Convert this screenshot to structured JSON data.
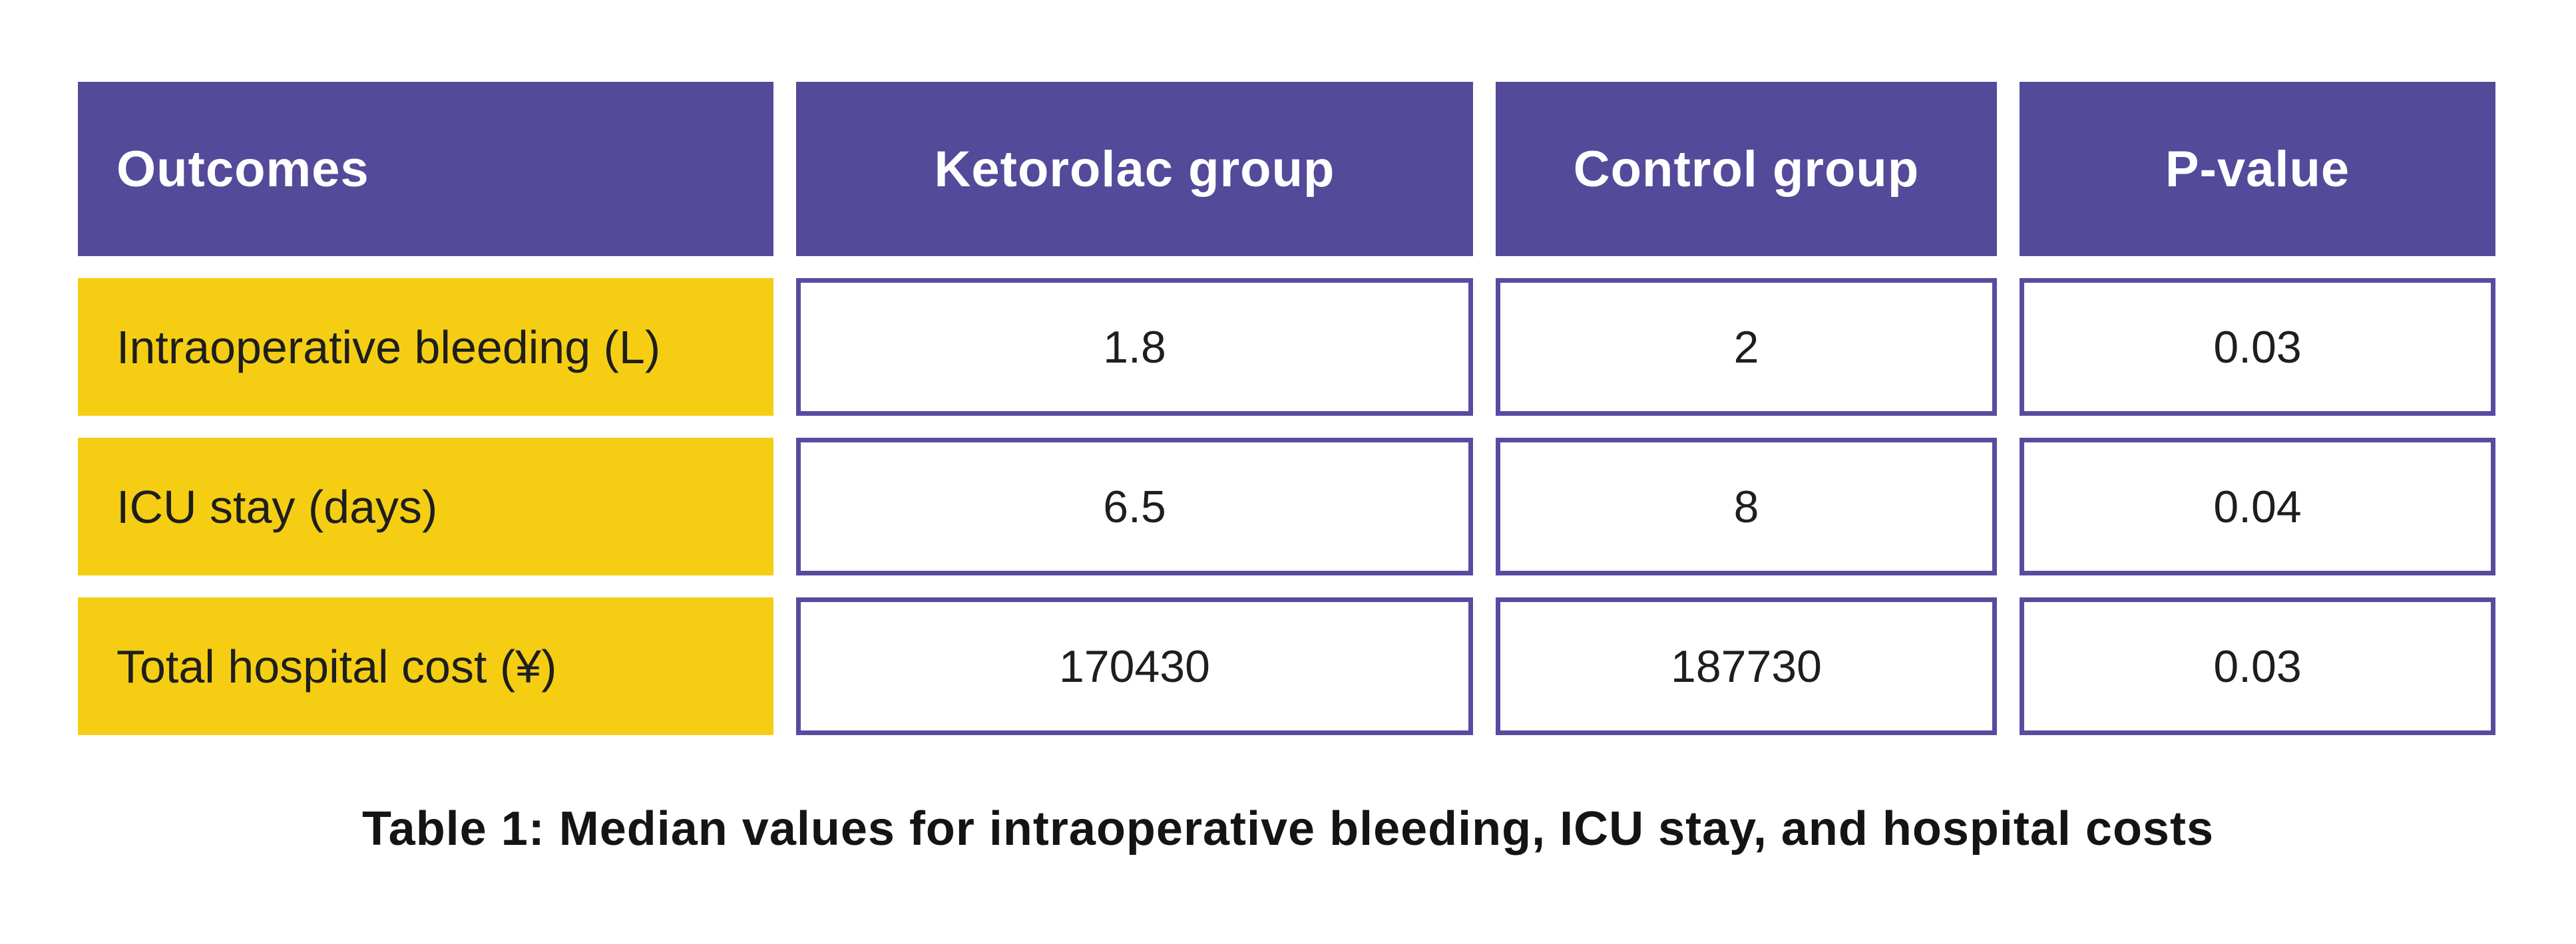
{
  "table": {
    "columns": [
      "Outcomes",
      "Ketorolac group",
      "Control group",
      "P-value"
    ],
    "rows": [
      {
        "outcome": "Intraoperative bleeding (L)",
        "ketorolac": "1.8",
        "control": "2",
        "p_value": "0.03"
      },
      {
        "outcome": "ICU stay (days)",
        "ketorolac": "6.5",
        "control": "8",
        "p_value": "0.04"
      },
      {
        "outcome": "Total hospital cost (¥)",
        "ketorolac": "170430",
        "control": "187730",
        "p_value": "0.03"
      }
    ]
  },
  "caption": {
    "text": "Table 1: Median values for intraoperative bleeding, ICU stay, and hospital costs"
  },
  "colors": {
    "header_bg": "#544A9A",
    "header_text": "#FFFFFF",
    "row_label_bg": "#F5CE13",
    "value_cell_border": "#564CA0",
    "body_text": "#1E1E1E",
    "caption_text": "#141414",
    "page_bg": "#FFFFFF"
  }
}
